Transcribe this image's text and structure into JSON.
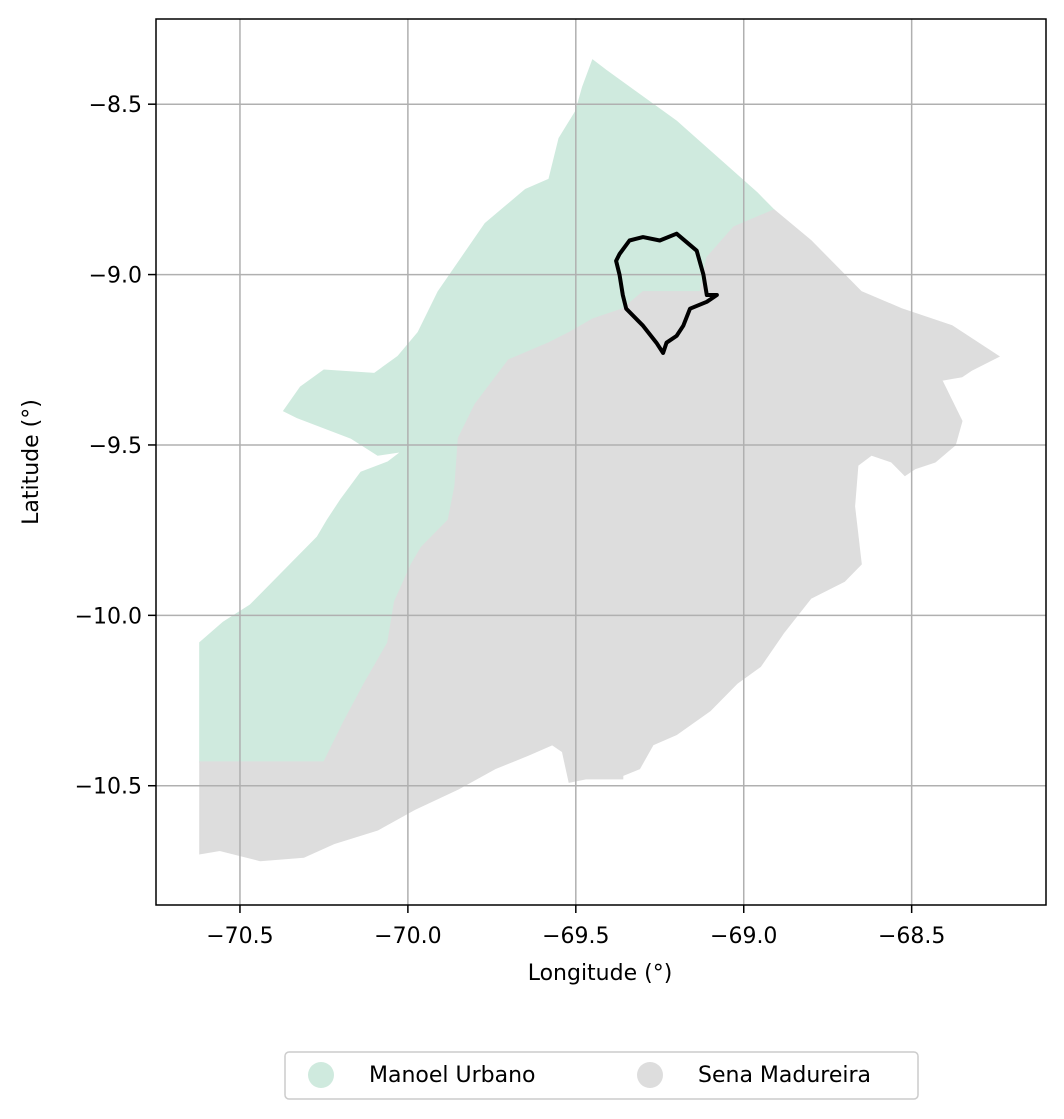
{
  "chart_data": {
    "type": "map",
    "xlabel": "Longitude (°)",
    "ylabel": "Latitude (°)",
    "xlim": [
      -70.75,
      -68.1
    ],
    "ylim": [
      -10.85,
      -8.25
    ],
    "xticks": [
      -70.5,
      -70.0,
      -69.5,
      -69.0,
      -68.5
    ],
    "xtick_labels": [
      "−70.5",
      "−70.0",
      "−69.5",
      "−69.0",
      "−68.5"
    ],
    "yticks": [
      -8.5,
      -9.0,
      -9.5,
      -10.0,
      -10.5
    ],
    "ytick_labels": [
      "−8.5",
      "−9.0",
      "−9.5",
      "−10.0",
      "−10.5"
    ],
    "grid": true,
    "legend_position": "bottom-center",
    "regions": [
      {
        "name": "Manoel Urbano",
        "color": "#cfeade",
        "outline_lonlat": [
          [
            -69.45,
            -8.37
          ],
          [
            -69.41,
            -8.4
          ],
          [
            -69.2,
            -8.55
          ],
          [
            -68.96,
            -8.76
          ],
          [
            -68.91,
            -8.81
          ],
          [
            -69.03,
            -8.86
          ],
          [
            -69.11,
            -8.95
          ],
          [
            -69.13,
            -9.05
          ],
          [
            -69.3,
            -9.05
          ],
          [
            -69.36,
            -9.1
          ],
          [
            -69.45,
            -9.13
          ],
          [
            -69.52,
            -9.17
          ],
          [
            -69.58,
            -9.2
          ],
          [
            -69.7,
            -9.25
          ],
          [
            -69.8,
            -9.38
          ],
          [
            -69.85,
            -9.48
          ],
          [
            -69.86,
            -9.62
          ],
          [
            -69.88,
            -9.72
          ],
          [
            -69.96,
            -9.8
          ],
          [
            -69.99,
            -9.85
          ],
          [
            -70.04,
            -9.96
          ],
          [
            -70.06,
            -10.08
          ],
          [
            -70.13,
            -10.2
          ],
          [
            -70.19,
            -10.31
          ],
          [
            -70.25,
            -10.43
          ],
          [
            -70.62,
            -10.43
          ],
          [
            -70.62,
            -10.08
          ],
          [
            -70.55,
            -10.02
          ],
          [
            -70.47,
            -9.97
          ],
          [
            -70.43,
            -9.93
          ],
          [
            -70.33,
            -9.83
          ],
          [
            -70.27,
            -9.77
          ],
          [
            -70.24,
            -9.72
          ],
          [
            -70.2,
            -9.66
          ],
          [
            -70.14,
            -9.58
          ],
          [
            -70.06,
            -9.55
          ],
          [
            -70.02,
            -9.52
          ],
          [
            -70.09,
            -9.53
          ],
          [
            -70.17,
            -9.48
          ],
          [
            -70.33,
            -9.42
          ],
          [
            -70.37,
            -9.4
          ],
          [
            -70.32,
            -9.33
          ],
          [
            -70.25,
            -9.28
          ],
          [
            -70.1,
            -9.29
          ],
          [
            -70.03,
            -9.24
          ],
          [
            -69.97,
            -9.17
          ],
          [
            -69.91,
            -9.05
          ],
          [
            -69.84,
            -8.95
          ],
          [
            -69.77,
            -8.85
          ],
          [
            -69.71,
            -8.8
          ],
          [
            -69.65,
            -8.75
          ],
          [
            -69.58,
            -8.72
          ],
          [
            -69.55,
            -8.6
          ],
          [
            -69.5,
            -8.52
          ],
          [
            -69.48,
            -8.45
          ]
        ]
      },
      {
        "name": "Sena Madureira",
        "color": "#dddddd",
        "outline_lonlat": [
          [
            -68.91,
            -8.81
          ],
          [
            -68.8,
            -8.9
          ],
          [
            -68.65,
            -9.05
          ],
          [
            -68.53,
            -9.1
          ],
          [
            -68.38,
            -9.15
          ],
          [
            -68.24,
            -9.24
          ],
          [
            -68.32,
            -9.28
          ],
          [
            -68.35,
            -9.3
          ],
          [
            -68.41,
            -9.31
          ],
          [
            -68.35,
            -9.43
          ],
          [
            -68.37,
            -9.5
          ],
          [
            -68.43,
            -9.55
          ],
          [
            -68.49,
            -9.57
          ],
          [
            -68.52,
            -9.59
          ],
          [
            -68.56,
            -9.55
          ],
          [
            -68.62,
            -9.53
          ],
          [
            -68.66,
            -9.56
          ],
          [
            -68.67,
            -9.68
          ],
          [
            -68.65,
            -9.85
          ],
          [
            -68.7,
            -9.9
          ],
          [
            -68.8,
            -9.95
          ],
          [
            -68.88,
            -10.05
          ],
          [
            -68.95,
            -10.15
          ],
          [
            -69.02,
            -10.2
          ],
          [
            -69.1,
            -10.28
          ],
          [
            -69.2,
            -10.35
          ],
          [
            -69.27,
            -10.38
          ],
          [
            -69.31,
            -10.45
          ],
          [
            -69.36,
            -10.47
          ],
          [
            -69.36,
            -10.48
          ],
          [
            -69.47,
            -10.48
          ],
          [
            -69.52,
            -10.49
          ],
          [
            -69.54,
            -10.4
          ],
          [
            -69.57,
            -10.38
          ],
          [
            -69.64,
            -10.41
          ],
          [
            -69.74,
            -10.45
          ],
          [
            -69.85,
            -10.51
          ],
          [
            -69.98,
            -10.57
          ],
          [
            -70.09,
            -10.63
          ],
          [
            -70.22,
            -10.67
          ],
          [
            -70.31,
            -10.71
          ],
          [
            -70.44,
            -10.72
          ],
          [
            -70.56,
            -10.69
          ],
          [
            -70.62,
            -10.7
          ],
          [
            -70.62,
            -10.43
          ],
          [
            -70.25,
            -10.43
          ],
          [
            -70.19,
            -10.31
          ],
          [
            -70.13,
            -10.2
          ],
          [
            -70.06,
            -10.08
          ],
          [
            -70.04,
            -9.96
          ],
          [
            -69.99,
            -9.85
          ],
          [
            -69.96,
            -9.8
          ],
          [
            -69.88,
            -9.72
          ],
          [
            -69.86,
            -9.62
          ],
          [
            -69.85,
            -9.48
          ],
          [
            -69.8,
            -9.38
          ],
          [
            -69.7,
            -9.25
          ],
          [
            -69.58,
            -9.2
          ],
          [
            -69.52,
            -9.17
          ],
          [
            -69.45,
            -9.13
          ],
          [
            -69.36,
            -9.1
          ],
          [
            -69.3,
            -9.05
          ],
          [
            -69.13,
            -9.05
          ],
          [
            -69.11,
            -8.95
          ],
          [
            -69.03,
            -8.86
          ]
        ]
      }
    ],
    "outline": {
      "color": "#000000",
      "outline_lonlat": [
        [
          -69.2,
          -8.88
        ],
        [
          -69.14,
          -8.93
        ],
        [
          -69.12,
          -9.0
        ],
        [
          -69.11,
          -9.06
        ],
        [
          -69.08,
          -9.06
        ],
        [
          -69.11,
          -9.08
        ],
        [
          -69.16,
          -9.1
        ],
        [
          -69.18,
          -9.15
        ],
        [
          -69.2,
          -9.18
        ],
        [
          -69.23,
          -9.2
        ],
        [
          -69.24,
          -9.23
        ],
        [
          -69.26,
          -9.2
        ],
        [
          -69.3,
          -9.15
        ],
        [
          -69.35,
          -9.1
        ],
        [
          -69.36,
          -9.06
        ],
        [
          -69.37,
          -9.0
        ],
        [
          -69.38,
          -8.96
        ],
        [
          -69.37,
          -8.94
        ],
        [
          -69.34,
          -8.9
        ],
        [
          -69.3,
          -8.89
        ],
        [
          -69.25,
          -8.9
        ]
      ]
    },
    "legend": [
      {
        "label": "Manoel Urbano",
        "color": "#cfeade"
      },
      {
        "label": "Sena Madureira",
        "color": "#dddddd"
      }
    ]
  }
}
